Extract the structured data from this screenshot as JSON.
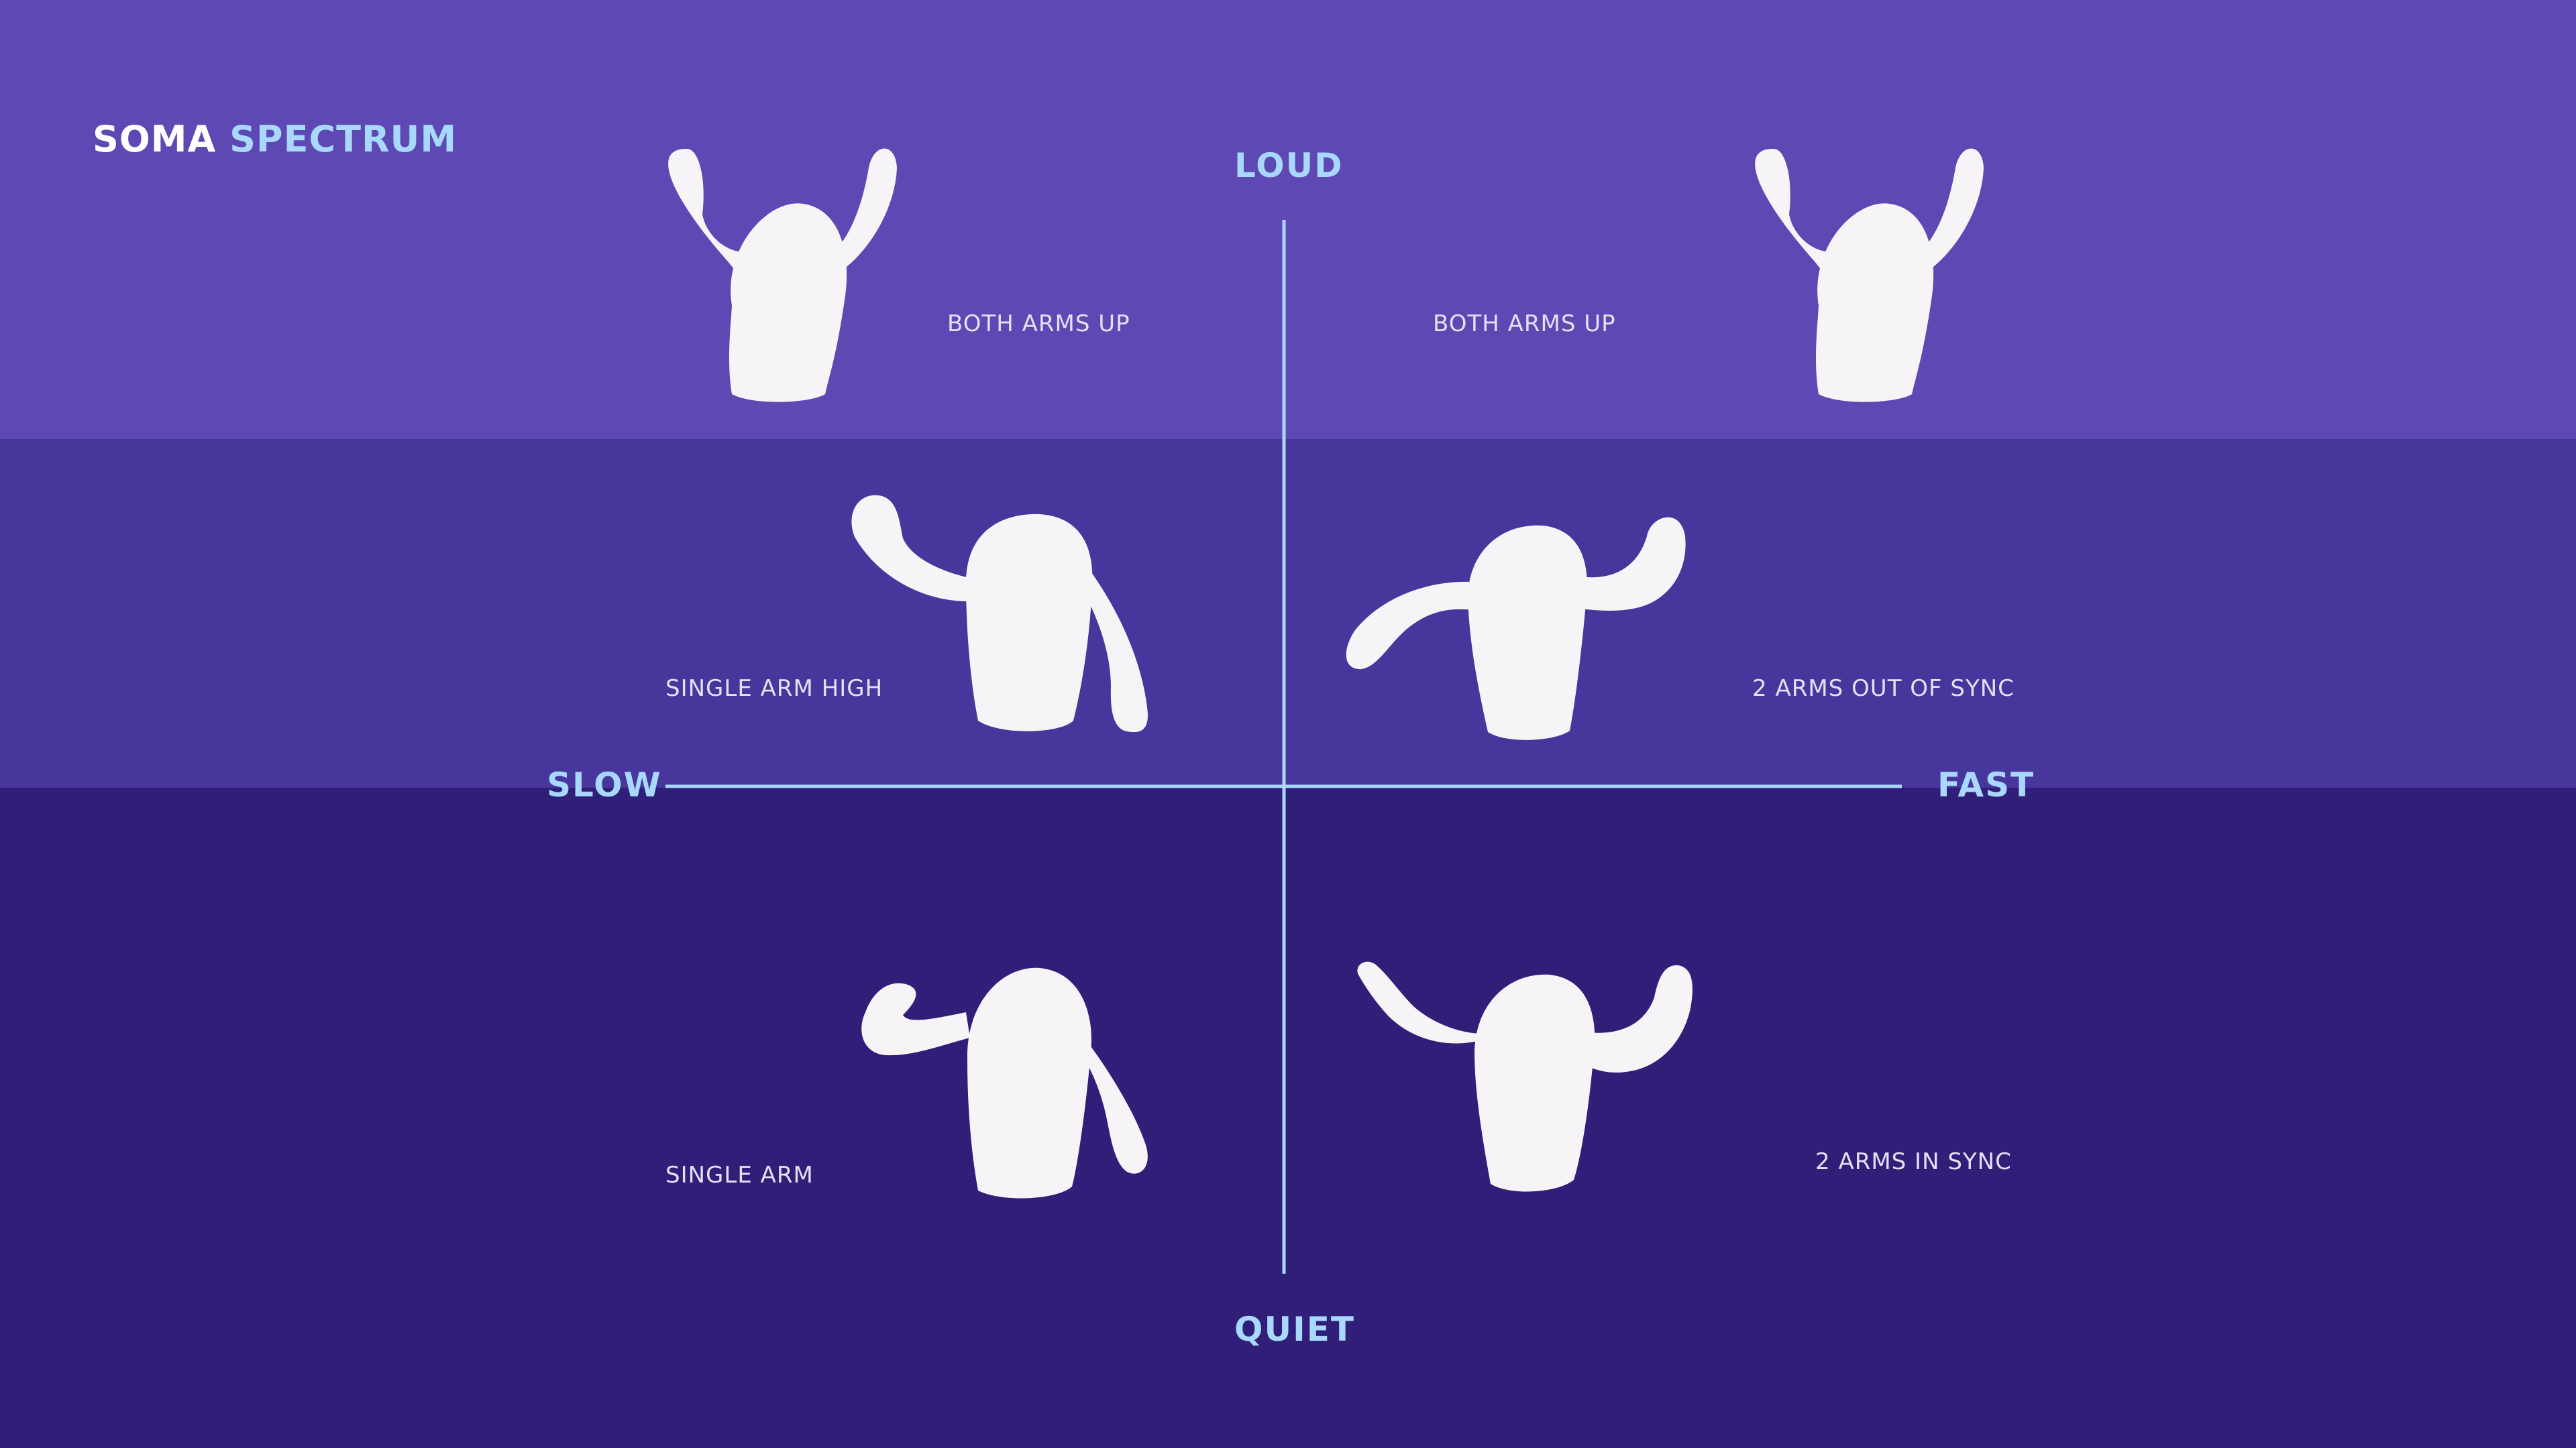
{
  "colors": {
    "band_top": "#5e48b4",
    "band_mid": "#47369b",
    "band_bot": "#301e79",
    "accent": "#a8d8fc",
    "figure": "#f7f4f7",
    "caption": "#e4e0f4",
    "title": "#ffffff"
  },
  "title": {
    "part1": "SOMA",
    "part2": "SPECTRUM"
  },
  "axes": {
    "top": "LOUD",
    "bottom": "QUIET",
    "left": "SLOW",
    "right": "FAST"
  },
  "figures": [
    {
      "pose": "both-arms-up",
      "caption": "BOTH ARMS UP"
    },
    {
      "pose": "both-arms-up",
      "caption": "BOTH ARMS UP"
    },
    {
      "pose": "single-arm-high",
      "caption": "SINGLE ARM HIGH"
    },
    {
      "pose": "arms-out-of-sync",
      "caption": "2 ARMS OUT OF SYNC"
    },
    {
      "pose": "single-arm",
      "caption": "SINGLE ARM"
    },
    {
      "pose": "arms-in-sync",
      "caption": "2 ARMS IN SYNC"
    }
  ]
}
